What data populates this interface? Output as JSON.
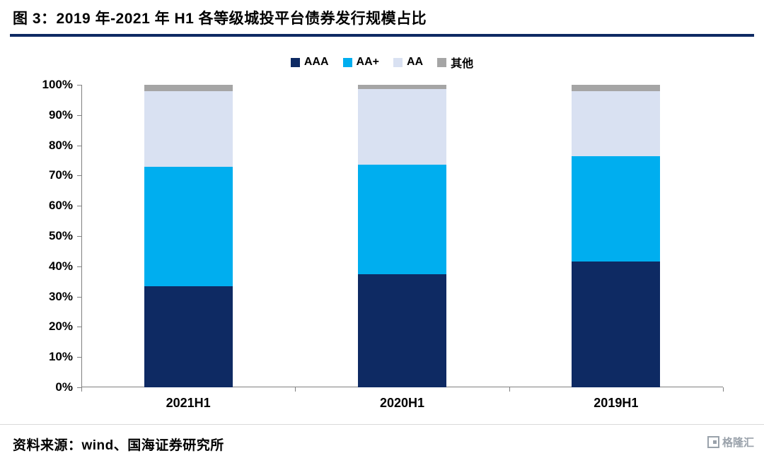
{
  "header": {
    "title": "图 3：2019 年-2021 年 H1 各等级城投平台债券发行规模占比",
    "underline_color": "#0E2A63"
  },
  "footer": {
    "source": "资料来源：wind、国海证券研究所",
    "logo_text": "格隆汇"
  },
  "chart_data": {
    "type": "bar",
    "stacked": true,
    "percent": true,
    "title": "2019 年-2021 年 H1 各等级城投平台债券发行规模占比",
    "categories": [
      "2021H1",
      "2020H1",
      "2019H1"
    ],
    "series": [
      {
        "name": "AAA",
        "color": "#0E2A63",
        "values": [
          33.5,
          37.5,
          41.5
        ]
      },
      {
        "name": "AA+",
        "color": "#00AEEF",
        "values": [
          39.5,
          36.0,
          35.0
        ]
      },
      {
        "name": "AA",
        "color": "#D9E1F2",
        "values": [
          25.0,
          25.0,
          21.5
        ]
      },
      {
        "name": "其他",
        "color": "#A5A5A5",
        "values": [
          2.0,
          1.5,
          2.0
        ]
      }
    ],
    "xlabel": "",
    "ylabel": "",
    "ylim": [
      0,
      100
    ],
    "ytick_step": 10,
    "ytick_labels": [
      "0%",
      "10%",
      "20%",
      "30%",
      "40%",
      "50%",
      "60%",
      "70%",
      "80%",
      "90%",
      "100%"
    ],
    "legend_position": "top",
    "grid": false,
    "axis_color": "#808080"
  }
}
